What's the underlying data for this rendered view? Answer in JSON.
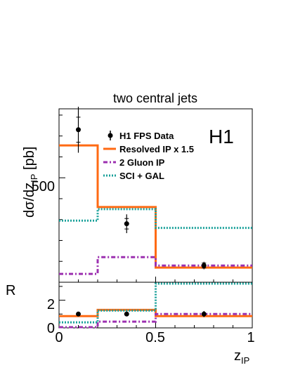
{
  "chart_data": [
    {
      "type": "line",
      "panel": "main",
      "title": "two central jets",
      "ylabel": "dσ/dz",
      "ylabel_sub": "IP",
      "ylabel_unit": " [pb]",
      "xlim": [
        0,
        1
      ],
      "ylim": [
        0,
        830
      ],
      "yticks": [
        500
      ],
      "ytick_labels": [
        "500"
      ],
      "logo": "H1",
      "bin_edges": [
        0,
        0.2,
        0.5,
        1.0
      ],
      "data_series": {
        "name": "H1 FPS Data",
        "x": [
          0.1,
          0.35,
          0.75
        ],
        "y": [
          730,
          280,
          80
        ],
        "stat_err": [
          60,
          25,
          12
        ],
        "tot_err": [
          110,
          45,
          18
        ]
      },
      "series": [
        {
          "name": "Resolved IP x 1.5",
          "color": "#ff6a13",
          "style": "solid",
          "values": [
            655,
            360,
            70
          ]
        },
        {
          "name": "2 Gluon IP",
          "color": "#9c30b0",
          "style": "dashdot",
          "values": [
            40,
            120,
            80
          ]
        },
        {
          "name": "SCI + GAL",
          "color": "#1aa19a",
          "style": "dotted",
          "values": [
            295,
            350,
            260
          ]
        }
      ]
    },
    {
      "type": "line",
      "panel": "ratio",
      "ylabel": "R",
      "xlabel": "z",
      "xlabel_sub": "IP",
      "xlim": [
        0,
        1
      ],
      "ylim": [
        0,
        3.3
      ],
      "yticks": [
        0,
        2
      ],
      "ytick_labels": [
        "0",
        "2"
      ],
      "xticks": [
        0,
        0.5,
        1
      ],
      "xtick_labels": [
        "0",
        "0.5",
        "1"
      ],
      "bin_edges": [
        0,
        0.2,
        0.5,
        1.0
      ],
      "data_series": {
        "name": "H1 FPS Data",
        "x": [
          0.1,
          0.35,
          0.75
        ],
        "y": [
          1,
          1,
          1
        ],
        "tot_err": [
          0.15,
          0.16,
          0.22
        ]
      },
      "series": [
        {
          "name": "Resolved IP x 1.5",
          "color": "#ff6a13",
          "style": "solid",
          "values": [
            0.85,
            1.3,
            0.85
          ]
        },
        {
          "name": "2 Gluon IP",
          "color": "#9c30b0",
          "style": "dashdot",
          "values": [
            0.05,
            0.45,
            1.0
          ]
        },
        {
          "name": "SCI + GAL",
          "color": "#1aa19a",
          "style": "dotted",
          "values": [
            0.4,
            1.25,
            3.2
          ]
        }
      ]
    }
  ]
}
